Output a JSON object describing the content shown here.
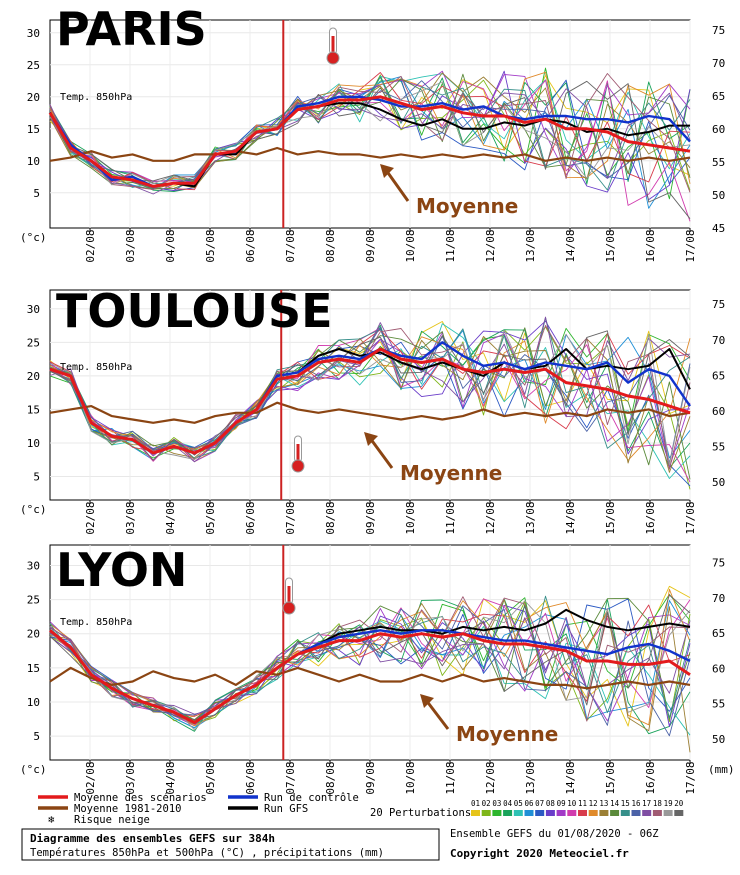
{
  "chart_data": [
    {
      "type": "line",
      "city": "PARIS",
      "label_series": "Temp. 850hPa",
      "unit_left": "(°c)",
      "left_axis_ticks": [
        "5",
        "10",
        "15",
        "20",
        "25",
        "30"
      ],
      "right_axis_ticks": [
        "45",
        "50",
        "55",
        "60",
        "65",
        "70",
        "75"
      ],
      "x_ticks": [
        "02/08",
        "03/08",
        "04/08",
        "05/08",
        "06/08",
        "07/08",
        "08/08",
        "09/08",
        "10/08",
        "11/08",
        "12/08",
        "13/08",
        "14/08",
        "15/08",
        "16/08",
        "17/08"
      ],
      "ylim": [
        0,
        32
      ],
      "annotation": "Moyenne",
      "mean_scenarios": [
        17.5,
        12,
        10,
        7.5,
        7,
        6,
        6.5,
        6.5,
        11,
        11.5,
        14.5,
        15,
        18,
        18.5,
        19.5,
        19.5,
        20,
        19,
        18,
        18.5,
        17.5,
        17,
        17,
        16,
        16.5,
        15,
        15,
        14.5,
        13,
        12.5,
        12,
        11.5
      ],
      "control_run": [
        17.5,
        12.5,
        10,
        7,
        7.5,
        6,
        6.5,
        6.5,
        11,
        11.5,
        14.5,
        15,
        18.5,
        19,
        20,
        20,
        19.5,
        18.5,
        18.5,
        19,
        18,
        18.5,
        17,
        16.5,
        17,
        17,
        16.5,
        16.5,
        16,
        17,
        16.5,
        13
      ],
      "gfs_run": [
        17.5,
        12,
        10,
        7,
        7.5,
        6,
        6.5,
        6,
        11,
        11,
        14.5,
        15,
        18,
        18.5,
        19,
        19,
        18,
        16.5,
        15.5,
        16.5,
        15,
        15,
        16,
        15.5,
        16.5,
        16,
        14.5,
        15,
        14,
        14.5,
        15.5,
        15.5
      ],
      "climatology": [
        10,
        10.5,
        11.5,
        10.5,
        11,
        10,
        10,
        11,
        11,
        11.5,
        11,
        12,
        11,
        11.5,
        11,
        11,
        10.5,
        11,
        10.5,
        11,
        10.5,
        11,
        10.5,
        11,
        10,
        10.5,
        10,
        10.5,
        10,
        10.5,
        10,
        10.5
      ],
      "forecast_marker_index": 11.3
    },
    {
      "type": "line",
      "city": "TOULOUSE",
      "label_series": "Temp. 850hPa",
      "unit_left": "(°c)",
      "left_axis_ticks": [
        "5",
        "10",
        "15",
        "20",
        "25",
        "30"
      ],
      "right_axis_ticks": [
        "50",
        "55",
        "60",
        "65",
        "70",
        "75"
      ],
      "x_ticks": [
        "02/08",
        "03/08",
        "04/08",
        "05/08",
        "06/08",
        "07/08",
        "08/08",
        "09/08",
        "10/08",
        "11/08",
        "12/08",
        "13/08",
        "14/08",
        "15/08",
        "16/08",
        "17/08"
      ],
      "ylim": [
        2,
        32
      ],
      "annotation": "Moyenne",
      "mean_scenarios": [
        21,
        20,
        13,
        11,
        10.5,
        8.5,
        9.5,
        8.5,
        10,
        13,
        15,
        19.5,
        20,
        22,
        22.5,
        22,
        24,
        22.5,
        22,
        22.5,
        21,
        20.5,
        21,
        20.5,
        21,
        19,
        18.5,
        18,
        17,
        16.5,
        15.5,
        14.5
      ],
      "control_run": [
        21,
        20,
        13,
        11,
        10.5,
        8.5,
        9.5,
        8.5,
        10,
        13,
        15,
        20,
        20.5,
        22.5,
        23,
        22.5,
        24,
        23,
        22.5,
        25,
        23,
        21.5,
        22,
        21,
        22,
        21.5,
        21,
        22,
        19,
        21,
        20,
        15.5
      ],
      "gfs_run": [
        21,
        20,
        13,
        11,
        10.5,
        8.5,
        9.5,
        8.5,
        10,
        13,
        15,
        20,
        20.5,
        23,
        24,
        23,
        23.5,
        22,
        21,
        22,
        21,
        20,
        22,
        21,
        21.5,
        24,
        21,
        21.5,
        21,
        21.5,
        24,
        18
      ],
      "climatology": [
        14.5,
        15,
        15.5,
        14,
        13.5,
        13,
        13.5,
        13,
        14,
        14.5,
        14.5,
        16,
        15,
        14.5,
        15,
        14.5,
        14,
        13.5,
        14,
        13.5,
        14,
        15,
        14,
        14.5,
        14,
        14.5,
        14,
        15,
        14.5,
        15,
        14,
        14.5
      ],
      "forecast_marker_index": 11.2
    },
    {
      "type": "line",
      "city": "LYON",
      "label_series": "Temp. 850hPa",
      "unit_left": "(°c)",
      "unit_right": "(mm)",
      "left_axis_ticks": [
        "5",
        "10",
        "15",
        "20",
        "25",
        "30"
      ],
      "right_axis_ticks": [
        "50",
        "55",
        "60",
        "65",
        "70",
        "75"
      ],
      "x_ticks": [
        "02/08",
        "03/08",
        "04/08",
        "05/08",
        "06/08",
        "07/08",
        "08/08",
        "09/08",
        "10/08",
        "11/08",
        "12/08",
        "13/08",
        "14/08",
        "15/08",
        "16/08",
        "17/08"
      ],
      "ylim": [
        2,
        32
      ],
      "annotation": "Moyenne",
      "mean_scenarios": [
        20.5,
        18,
        14,
        12,
        10.5,
        9.5,
        8.5,
        7,
        9,
        11,
        12.5,
        15,
        17,
        18,
        19,
        19,
        20,
        19.5,
        20,
        19.5,
        20,
        19,
        18.5,
        18.5,
        18,
        17.5,
        16,
        16,
        15.5,
        15.5,
        16,
        14
      ],
      "control_run": [
        20.5,
        18,
        14,
        12,
        10.5,
        9.5,
        8.5,
        7,
        9,
        11,
        12.5,
        15,
        17,
        18.5,
        19.5,
        20,
        20.5,
        20,
        20.5,
        20.5,
        20,
        19.5,
        19,
        19,
        18.5,
        18,
        17.5,
        17,
        18,
        18.5,
        17.5,
        16
      ],
      "gfs_run": [
        20.5,
        18,
        14,
        12,
        10.5,
        9.5,
        8.5,
        7,
        9,
        11,
        12.5,
        15,
        17,
        18.5,
        20,
        20.5,
        21,
        20.5,
        20.5,
        20,
        21,
        20.5,
        21,
        20.5,
        21.5,
        23.5,
        22,
        21,
        20.5,
        21,
        21.5,
        21
      ],
      "climatology": [
        13,
        15,
        13.5,
        12.5,
        13,
        14.5,
        13.5,
        13,
        14,
        12.5,
        14.5,
        14,
        15,
        14,
        13,
        14,
        13,
        13,
        14,
        13,
        14,
        13,
        13.5,
        13,
        12.5,
        12.5,
        12,
        12.5,
        13,
        12.5,
        13,
        12.5
      ],
      "forecast_marker_index": 11.3
    }
  ],
  "legend": {
    "mean_scenarios": "Moyenne des scénarios",
    "climatology": "Moyenne 1981-2010",
    "snow_risk": "Risque neige",
    "control_run": "Run de contrôle",
    "gfs_run": "Run GFS",
    "perturbations": "20 Perturbations",
    "perturbation_numbers": [
      "01",
      "02",
      "03",
      "04",
      "05",
      "06",
      "07",
      "08",
      "09",
      "10",
      "11",
      "12",
      "13",
      "14",
      "15",
      "16",
      "17",
      "18",
      "19",
      "20"
    ],
    "perturbation_colors": [
      "#e6c419",
      "#7fb61a",
      "#2db52d",
      "#19a35a",
      "#2ec2b4",
      "#1f8fd6",
      "#2b59c3",
      "#6a3dc9",
      "#a23ac7",
      "#d13cae",
      "#d83c4c",
      "#e08a2b",
      "#9b7f34",
      "#5b8a3b",
      "#368f8a",
      "#4b62a7",
      "#7f4ea3",
      "#a05a72",
      "#999999",
      "#666666"
    ],
    "colors": {
      "mean": "#e31a1c",
      "climatology": "#8b4513",
      "control": "#1133cc",
      "gfs": "#000000",
      "marker": "#cc2222"
    }
  },
  "footer": {
    "title": "Diagramme des ensembles GEFS sur 384h",
    "subtitle": "Températures 850hPa et 500hPa (°C) , précipitations (mm)",
    "run": "Ensemble GEFS du 01/08/2020 - 06Z",
    "copyright": "Copyright 2020 Meteociel.fr"
  }
}
